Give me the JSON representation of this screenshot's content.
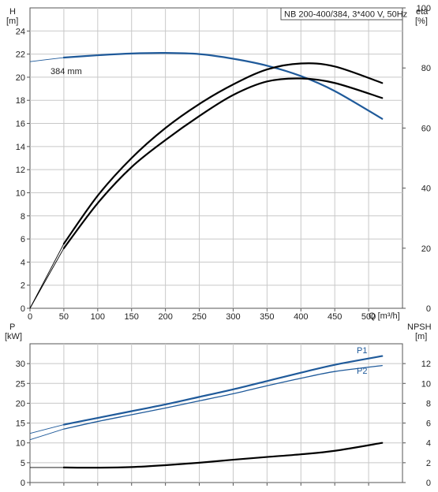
{
  "chart_data": [
    {
      "type": "line",
      "title": "NB 200-400/384, 3*400 V, 50Hz",
      "xlabel": "Q [m³/h]",
      "x_ticks": [
        "0",
        "50",
        "100",
        "150",
        "200",
        "250",
        "300",
        "350",
        "400",
        "450",
        "500"
      ],
      "xlim": [
        0,
        550
      ],
      "left_axis": {
        "label_top": "H",
        "label_unit": "[m]",
        "ylim": [
          0,
          26
        ],
        "ticks": [
          "0",
          "2",
          "4",
          "6",
          "8",
          "10",
          "12",
          "14",
          "16",
          "18",
          "20",
          "22",
          "24"
        ]
      },
      "right_axis": {
        "label_top": "eta",
        "label_unit": "[%]",
        "ylim": [
          0,
          100
        ],
        "ticks": [
          "0",
          "20",
          "40",
          "60",
          "80",
          "100"
        ]
      },
      "grid": true,
      "annotations": [
        {
          "text": "384 mm",
          "x": 50,
          "y": 21.7
        }
      ],
      "series": [
        {
          "axis": "left",
          "color": "#1f5a9a",
          "x": [
            50,
            100,
            150,
            200,
            250,
            300,
            350,
            400,
            450,
            520
          ],
          "values": [
            21.7,
            21.9,
            22.05,
            22.1,
            22.0,
            21.6,
            21.0,
            20.1,
            18.8,
            16.4
          ],
          "extension": {
            "x": [
              0,
              50
            ],
            "values": [
              21.35,
              21.7
            ]
          }
        },
        {
          "axis": "right",
          "color": "#000000",
          "x": [
            50,
            100,
            150,
            200,
            250,
            300,
            350,
            400,
            450,
            520
          ],
          "values": [
            20,
            35,
            47,
            56,
            64,
            71,
            75.5,
            76.5,
            75,
            70
          ],
          "extension": {
            "x": [
              0,
              50
            ],
            "values": [
              0,
              20
            ]
          }
        },
        {
          "axis": "right",
          "color": "#000000",
          "x": [
            50,
            100,
            150,
            200,
            250,
            300,
            350,
            400,
            450,
            520
          ],
          "values": [
            21.5,
            37.5,
            50,
            60,
            68,
            74.5,
            79.5,
            81.5,
            80.5,
            75
          ],
          "extension": {
            "x": [
              0,
              50
            ],
            "values": [
              0,
              21.5
            ]
          }
        }
      ]
    },
    {
      "type": "line",
      "xlim": [
        0,
        550
      ],
      "x_ticks": [
        "0",
        "50",
        "100",
        "150",
        "200",
        "250",
        "300",
        "350",
        "400",
        "450",
        "500"
      ],
      "left_axis": {
        "label_top": "P",
        "label_unit": "[kW]",
        "ylim": [
          0,
          35
        ],
        "ticks": [
          "0",
          "5",
          "10",
          "15",
          "20",
          "25",
          "30"
        ]
      },
      "right_axis": {
        "label_top": "NPSH",
        "label_unit": "[m]",
        "ylim": [
          0,
          14
        ],
        "ticks": [
          "0",
          "2",
          "4",
          "6",
          "8",
          "10",
          "12"
        ]
      },
      "grid": true,
      "series": [
        {
          "name": "P1",
          "axis": "left",
          "color": "#1f5a9a",
          "x": [
            50,
            100,
            150,
            200,
            250,
            300,
            350,
            400,
            450,
            520
          ],
          "values": [
            14.6,
            16.3,
            18.0,
            19.7,
            21.6,
            23.5,
            25.6,
            27.7,
            29.7,
            31.9
          ],
          "extension": {
            "x": [
              0,
              50
            ],
            "values": [
              12.4,
              14.6
            ]
          }
        },
        {
          "name": "P2",
          "axis": "left",
          "color": "#1f5a9a",
          "x": [
            50,
            100,
            150,
            200,
            250,
            300,
            350,
            400,
            450,
            520
          ],
          "values": [
            13.5,
            15.4,
            17.1,
            18.8,
            20.6,
            22.4,
            24.4,
            26.3,
            28.0,
            29.5
          ],
          "extension": {
            "x": [
              0,
              50
            ],
            "values": [
              10.8,
              13.5
            ]
          }
        },
        {
          "axis": "right",
          "color": "#000000",
          "x": [
            50,
            100,
            150,
            200,
            250,
            300,
            350,
            400,
            450,
            520
          ],
          "values": [
            1.52,
            1.5,
            1.56,
            1.75,
            2.0,
            2.3,
            2.58,
            2.85,
            3.2,
            4.0
          ],
          "extension": {
            "x": [
              0,
              50
            ],
            "values": [
              1.52,
              1.52
            ]
          }
        }
      ]
    }
  ]
}
